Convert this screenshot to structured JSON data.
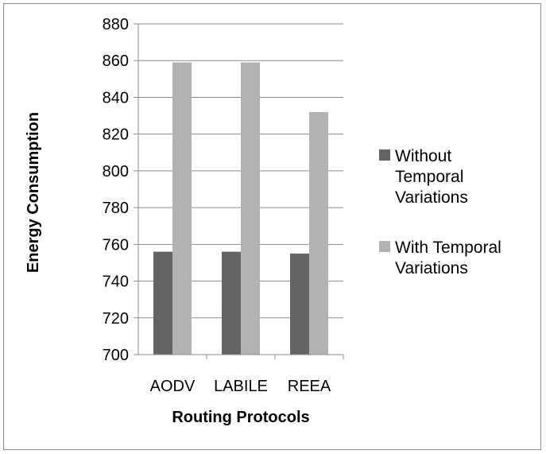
{
  "chart_data": {
    "type": "bar",
    "categories": [
      "AODV",
      "LABILE",
      "REEA"
    ],
    "series": [
      {
        "name": "Without Temporal Variations",
        "color": "#646464",
        "values": [
          756,
          756,
          755
        ]
      },
      {
        "name": "With Temporal Variations",
        "color": "#b2b2b2",
        "values": [
          859,
          859,
          832
        ]
      }
    ],
    "xlabel": "Routing Protocols",
    "ylabel": "Energy Consumption",
    "ylim": [
      700,
      880
    ],
    "yticks": [
      700,
      720,
      740,
      760,
      780,
      800,
      820,
      840,
      860,
      880
    ],
    "grid": true,
    "legend": "right",
    "legend_lines": [
      [
        "Without",
        "Temporal",
        "Variations"
      ],
      [
        "With Temporal",
        "Variations"
      ]
    ]
  }
}
